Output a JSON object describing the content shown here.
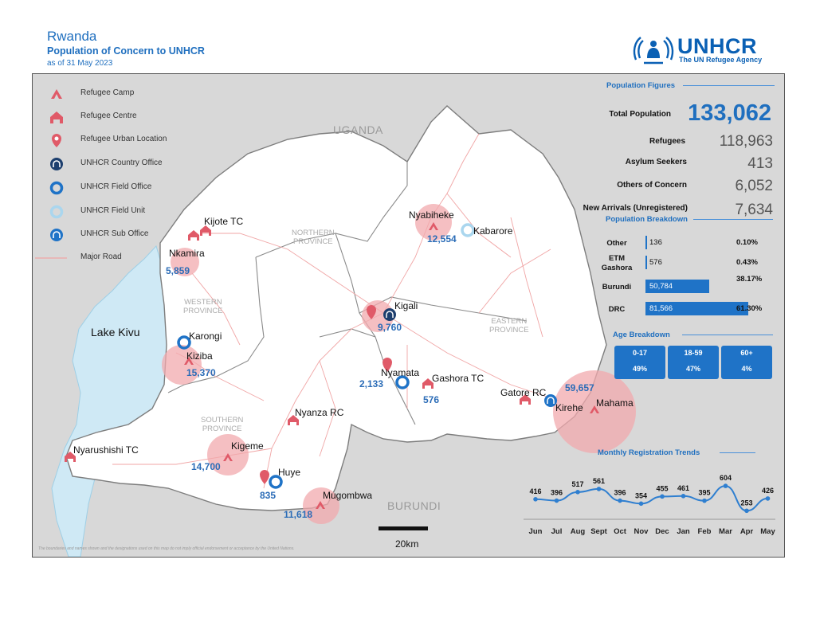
{
  "header": {
    "country": "Rwanda",
    "title": "Population of Concern to UNHCR",
    "date": "as of 31 May 2023"
  },
  "logo": {
    "text": "UNHCR",
    "subtitle": "The UN Refugee Agency",
    "icon": "unhcr-logo-icon"
  },
  "legend": [
    {
      "icon": "refugee-camp-icon",
      "label": "Refugee Camp"
    },
    {
      "icon": "refugee-centre-icon",
      "label": "Refugee Centre"
    },
    {
      "icon": "refugee-urban-location-icon",
      "label": "Refugee Urban Location"
    },
    {
      "icon": "unhcr-country-office-icon",
      "label": "UNHCR Country Office"
    },
    {
      "icon": "unhcr-field-office-icon",
      "label": "UNHCR Field Office"
    },
    {
      "icon": "unhcr-field-unit-icon",
      "label": "UNHCR Field Unit"
    },
    {
      "icon": "unhcr-sub-office-icon",
      "label": "UNHCR Sub Office"
    },
    {
      "icon": "major-road-icon",
      "label": "Major Road"
    }
  ],
  "map": {
    "countries": [
      "UGANDA",
      "BURUNDI"
    ],
    "lake": "Lake Kivu",
    "provinces": [
      {
        "key": "northern",
        "line1": "NORTHERN",
        "line2": "PROVINCE"
      },
      {
        "key": "western",
        "line1": "WESTERN",
        "line2": "PROVINCE"
      },
      {
        "key": "eastern",
        "line1": "EASTERN",
        "line2": "PROVINCE"
      },
      {
        "key": "southern",
        "line1": "SOUTHERN",
        "line2": "PROVINCE"
      }
    ],
    "places": {
      "kijote": {
        "name": "Kijote TC"
      },
      "nkamira": {
        "name": "Nkamira",
        "value": "5,859"
      },
      "karongi": {
        "name": "Karongi"
      },
      "kiziba": {
        "name": "Kiziba",
        "value": "15,370"
      },
      "nyarushishi": {
        "name": "Nyarushishi TC"
      },
      "nyabiheke": {
        "name": "Nyabiheke",
        "value": "12,554"
      },
      "kabarore": {
        "name": "Kabarore"
      },
      "kigali": {
        "name": "Kigali",
        "value": "9,760"
      },
      "nyamata": {
        "name": "Nyamata",
        "value": "2,133"
      },
      "gashora": {
        "name": "Gashora TC",
        "value": "576"
      },
      "nyanza": {
        "name": "Nyanza RC"
      },
      "kigeme": {
        "name": "Kigeme",
        "value": "14,700"
      },
      "huye": {
        "name": "Huye",
        "value": "835"
      },
      "mugombwa": {
        "name": "Mugombwa",
        "value": "11,618"
      },
      "gatore": {
        "name": "Gatore RC"
      },
      "kirehe": {
        "name": "Kirehe"
      },
      "mahama": {
        "name": "Mahama",
        "value": "59,657"
      }
    },
    "scale_label": "20km",
    "disclaimer": "The boundaries and names shown and the designations used on this map do not imply official endorsement or acceptance by the United Nations."
  },
  "population_figures": {
    "heading": "Population Figures",
    "total_label": "Total Population",
    "total_value": "133,062",
    "rows": [
      {
        "label": "Refugees",
        "value": "118,963"
      },
      {
        "label": "Asylum Seekers",
        "value": "413"
      },
      {
        "label": "Others of Concern",
        "value": "6,052"
      },
      {
        "label": "New Arrivals (Unregistered)",
        "value": "7,634"
      }
    ]
  },
  "population_breakdown": {
    "heading": "Population Breakdown",
    "rows": [
      {
        "label_lines": [
          "Other"
        ],
        "value": "136",
        "pct": "0.10%",
        "share": 0.1
      },
      {
        "label_lines": [
          "ETM",
          "Gashora"
        ],
        "value": "576",
        "pct": "0.43%",
        "share": 0.43
      },
      {
        "label_lines": [
          "Burundi"
        ],
        "value": "50,784",
        "pct": "38.17%",
        "share": 38.17
      },
      {
        "label_lines": [
          "DRC"
        ],
        "value": "81,566",
        "pct": "61.30%",
        "share": 61.3
      }
    ]
  },
  "age_breakdown": {
    "heading": "Age Breakdown",
    "groups": [
      {
        "label": "0-17",
        "pct": "49%"
      },
      {
        "label": "18-59",
        "pct": "47%"
      },
      {
        "label": "60+",
        "pct": "4%"
      }
    ]
  },
  "chart_data": {
    "type": "line",
    "title": "Monthly Registration Trends",
    "categories": [
      "Jun",
      "Jul",
      "Aug",
      "Sept",
      "Oct",
      "Nov",
      "Dec",
      "Jan",
      "Feb",
      "Mar",
      "Apr",
      "May"
    ],
    "values": [
      416,
      396,
      517,
      561,
      396,
      354,
      455,
      461,
      395,
      604,
      253,
      426
    ],
    "color": "#2f7fd0"
  },
  "colors": {
    "accent": "#1f6fbf",
    "camp": "#e05a68",
    "bubble": "#f2a9ad",
    "lake": "#cfe9f5",
    "road": "#f0a5a5",
    "boundary": "#7d7d7d"
  }
}
